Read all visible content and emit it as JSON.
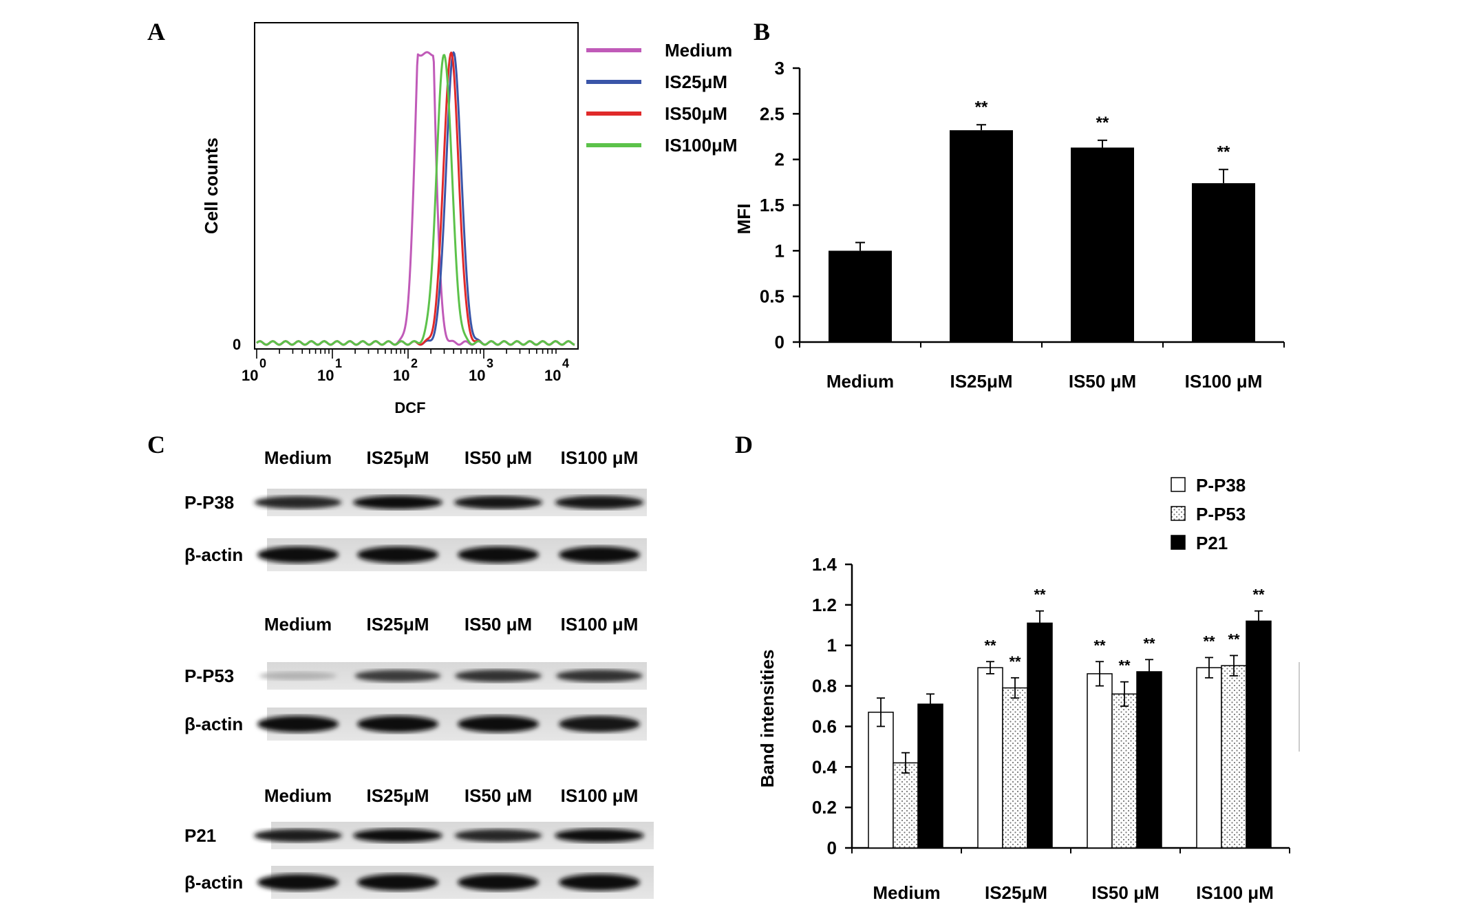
{
  "panels": {
    "A": {
      "letter": "A",
      "ylabel": "Cell counts",
      "xlabel": "DCF",
      "y_tick": "0",
      "x_ticks": [
        {
          "base": "10",
          "exp": "0"
        },
        {
          "base": "10",
          "exp": "1"
        },
        {
          "base": "10",
          "exp": "2"
        },
        {
          "base": "10",
          "exp": "3"
        },
        {
          "base": "10",
          "exp": "4"
        }
      ],
      "legend": [
        {
          "name": "Medium",
          "color": "#c05ab8"
        },
        {
          "name": "IS25μM",
          "color": "#3a55a8"
        },
        {
          "name": "IS50μM",
          "color": "#e02a2a"
        },
        {
          "name": "IS100μM",
          "color": "#5cc24a"
        }
      ]
    },
    "B": {
      "letter": "B",
      "ylabel": "MFI",
      "y_ticks": [
        "0",
        "0.5",
        "1",
        "1.5",
        "2",
        "2.5",
        "3"
      ]
    },
    "C": {
      "letter": "C",
      "groups": [
        {
          "header": [
            "Medium",
            "IS25μM",
            "IS50 μM",
            "IS100 μM"
          ],
          "rows": [
            "P-P38",
            "β-actin"
          ]
        },
        {
          "header": [
            "Medium",
            "IS25μM",
            "IS50 μM",
            "IS100 μM"
          ],
          "rows": [
            "P-P53",
            "β-actin"
          ]
        },
        {
          "header": [
            "Medium",
            "IS25μM",
            "IS50 μM",
            "IS100 μM"
          ],
          "rows": [
            "P21",
            "β-actin"
          ]
        }
      ]
    },
    "D": {
      "letter": "D",
      "ylabel": "Band intensities",
      "y_ticks": [
        "0",
        "0.2",
        "0.4",
        "0.6",
        "0.8",
        "1",
        "1.2",
        "1.4"
      ]
    }
  },
  "chart_data": [
    {
      "type": "line",
      "panel": "A",
      "xlabel": "DCF",
      "ylabel": "Cell counts",
      "x_scale": "log",
      "xlim": [
        1,
        10000
      ],
      "series": [
        {
          "name": "Medium",
          "peaks": [
            150,
            190
          ]
        },
        {
          "name": "IS25μM",
          "peaks": [
            400
          ]
        },
        {
          "name": "IS50μM",
          "peaks": [
            370
          ]
        },
        {
          "name": "IS100μM",
          "peaks": [
            300
          ]
        }
      ]
    },
    {
      "type": "bar",
      "panel": "B",
      "ylabel": "MFI",
      "categories": [
        "Medium",
        "IS25μM",
        "IS50 μM",
        "IS100 μM"
      ],
      "values": [
        1.0,
        2.32,
        2.13,
        1.74
      ],
      "errors": [
        0.09,
        0.06,
        0.08,
        0.15
      ],
      "annotations": [
        "",
        "**",
        "**",
        "**"
      ],
      "ylim": [
        0,
        3
      ]
    },
    {
      "type": "bar",
      "panel": "D",
      "ylabel": "Band intensities",
      "categories": [
        "Medium",
        "IS25μM",
        "IS50 μM",
        "IS100 μM"
      ],
      "ylim": [
        0,
        1.4
      ],
      "legend": "top-right",
      "series": [
        {
          "name": "P-P38",
          "values": [
            0.67,
            0.89,
            0.86,
            0.89
          ],
          "errors": [
            0.07,
            0.03,
            0.06,
            0.05
          ],
          "annotations": [
            "",
            "**",
            "**",
            "**"
          ],
          "fill": "white"
        },
        {
          "name": "P-P53",
          "values": [
            0.42,
            0.79,
            0.76,
            0.9
          ],
          "errors": [
            0.05,
            0.05,
            0.06,
            0.05
          ],
          "annotations": [
            "",
            "**",
            "**",
            "**"
          ],
          "fill": "dotted"
        },
        {
          "name": "P21",
          "values": [
            0.71,
            1.11,
            0.87,
            1.12
          ],
          "errors": [
            0.05,
            0.06,
            0.06,
            0.05
          ],
          "annotations": [
            "",
            "**",
            "**",
            "**"
          ],
          "fill": "black"
        }
      ]
    }
  ]
}
